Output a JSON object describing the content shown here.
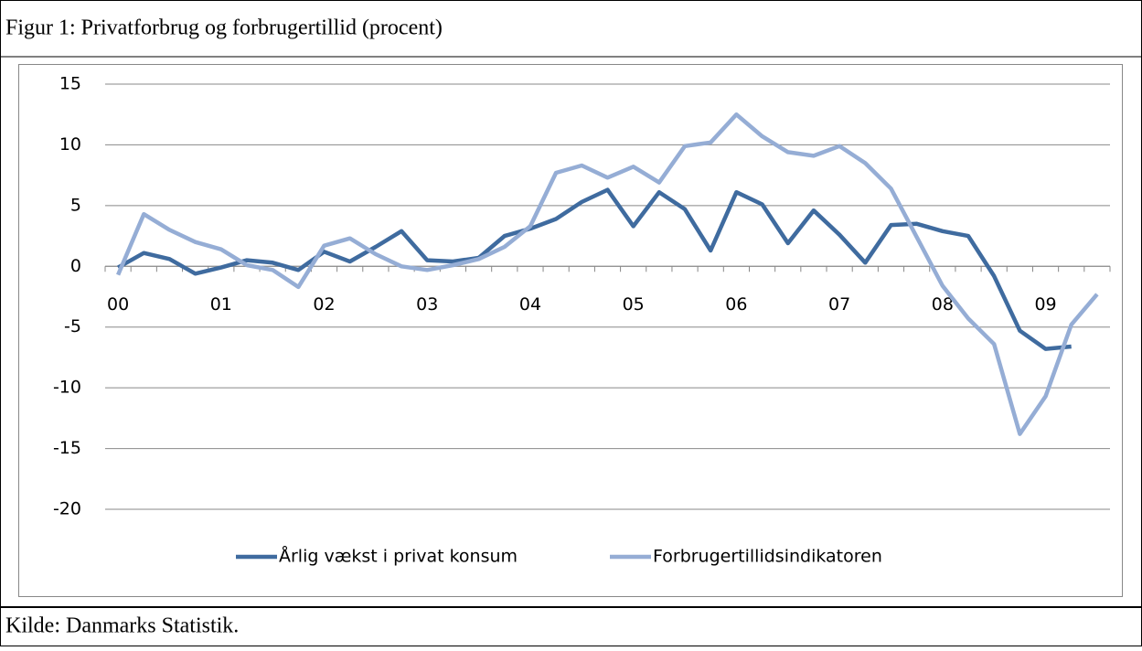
{
  "header": {
    "title": "Figur 1: Privatforbrug og forbrugertillid (procent)"
  },
  "chart_data": {
    "type": "line",
    "categories": [
      "00",
      null,
      null,
      null,
      "01",
      null,
      null,
      null,
      "02",
      null,
      null,
      null,
      "03",
      null,
      null,
      null,
      "04",
      null,
      null,
      null,
      "05",
      null,
      null,
      null,
      "06",
      null,
      null,
      null,
      "07",
      null,
      null,
      null,
      "08",
      null,
      null,
      null,
      "09",
      null,
      null
    ],
    "series": [
      {
        "name": "Årlig vækst i privat konsum",
        "color": "#3f6b9f",
        "values": [
          -0.1,
          1.1,
          0.6,
          -0.6,
          -0.1,
          0.5,
          0.3,
          -0.3,
          1.2,
          0.4,
          1.6,
          2.9,
          0.5,
          0.4,
          0.7,
          2.5,
          3.1,
          3.9,
          5.3,
          6.3,
          3.3,
          6.1,
          4.7,
          1.3,
          6.1,
          5.1,
          1.9,
          4.6,
          2.6,
          0.3,
          3.4,
          3.5,
          2.9,
          2.5,
          -0.8,
          -5.3,
          -6.8,
          -6.6,
          null
        ]
      },
      {
        "name": "Forbrugertillidsindikatoren",
        "color": "#95add5",
        "values": [
          -0.7,
          4.3,
          3.0,
          2.0,
          1.4,
          0.1,
          -0.3,
          -1.7,
          1.7,
          2.3,
          1.0,
          0.0,
          -0.3,
          0.1,
          0.6,
          1.6,
          3.3,
          7.7,
          8.3,
          7.3,
          8.2,
          6.9,
          9.9,
          10.2,
          12.5,
          10.7,
          9.4,
          9.1,
          9.9,
          8.5,
          6.4,
          2.4,
          -1.6,
          -4.3,
          -6.4,
          -13.8,
          -10.7,
          -4.8,
          -2.3
        ]
      }
    ],
    "ylim": [
      -20,
      15
    ],
    "yticks": [
      -20,
      -15,
      -10,
      -5,
      0,
      5,
      10,
      15
    ],
    "grid": true,
    "legend": "bottom"
  },
  "footer": {
    "source": "Kilde: Danmarks Statistik."
  }
}
